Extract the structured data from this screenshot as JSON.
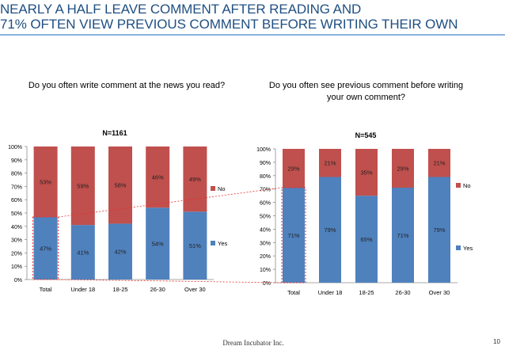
{
  "header": {
    "title_line1": "NEARLY A HALF LEAVE COMMENT AFTER READING AND",
    "title_line2": "71% OFTEN VIEW PREVIOUS COMMENT BEFORE WRITING THEIR OWN"
  },
  "footer": {
    "company": "Dream Incubator Inc.",
    "page": "10"
  },
  "colors": {
    "yes": "#4f81bd",
    "no": "#c0504d",
    "title": "#1f4f82",
    "highlight": "#e53030"
  },
  "chart_data": [
    {
      "type": "bar",
      "stacked": true,
      "title": "Do you often write comment at the news you read?",
      "subtitle": "N=1161",
      "categories": [
        "Total",
        "Under 18",
        "18-25",
        "26-30",
        "Over 30"
      ],
      "series": [
        {
          "name": "Yes",
          "values": [
            47,
            41,
            42,
            54,
            51
          ],
          "labels": [
            "47%",
            "41%",
            "42%",
            "54%",
            "51%"
          ]
        },
        {
          "name": "No",
          "values": [
            53,
            59,
            58,
            46,
            49
          ],
          "labels": [
            "53%",
            "59%",
            "58%",
            "46%",
            "49%"
          ]
        }
      ],
      "ylim": [
        0,
        100
      ],
      "yticks": [
        "0%",
        "10%",
        "20%",
        "30%",
        "40%",
        "50%",
        "60%",
        "70%",
        "80%",
        "90%",
        "100%"
      ],
      "legend_position": "right",
      "grid": false
    },
    {
      "type": "bar",
      "stacked": true,
      "title": "Do you often see previous comment before writing your own comment?",
      "subtitle": "N=545",
      "categories": [
        "Total",
        "Under 18",
        "18-25",
        "26-30",
        "Over 30"
      ],
      "series": [
        {
          "name": "Yes",
          "values": [
            71,
            79,
            65,
            71,
            79
          ],
          "labels": [
            "71%",
            "79%",
            "65%",
            "71%",
            "79%"
          ]
        },
        {
          "name": "No",
          "values": [
            29,
            21,
            35,
            29,
            21
          ],
          "labels": [
            "29%",
            "21%",
            "35%",
            "29%",
            "21%"
          ]
        }
      ],
      "ylim": [
        0,
        100
      ],
      "yticks": [
        "0%",
        "10%",
        "20%",
        "30%",
        "40%",
        "50%",
        "60%",
        "70%",
        "80%",
        "90%",
        "100%"
      ],
      "legend_position": "right",
      "grid": false
    }
  ]
}
